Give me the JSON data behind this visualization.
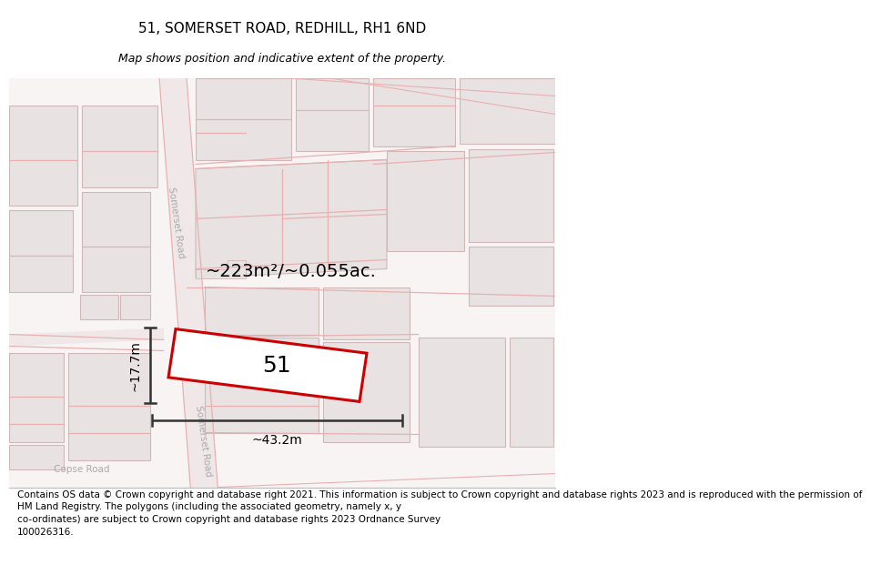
{
  "title": "51, SOMERSET ROAD, REDHILL, RH1 6ND",
  "subtitle": "Map shows position and indicative extent of the property.",
  "footer": "Contains OS data © Crown copyright and database right 2021. This information is subject to Crown copyright and database rights 2023 and is reproduced with the permission of\nHM Land Registry. The polygons (including the associated geometry, namely x, y\nco-ordinates) are subject to Crown copyright and database rights 2023 Ordnance Survey\n100026316.",
  "area_label": "~223m²/~0.055ac.",
  "width_label": "~43.2m",
  "height_label": "~17.7m",
  "plot_number": "51",
  "map_bg": "#f7f2f2",
  "building_color": "#e8e2e2",
  "building_edge": "#d0b8b8",
  "road_line": "#e8b0b0",
  "highlight_color": "#cc0000",
  "dim_line_color": "#333333",
  "road_label_color": "#aaaaaa",
  "title_fontsize": 11,
  "subtitle_fontsize": 9,
  "footer_fontsize": 7.5
}
